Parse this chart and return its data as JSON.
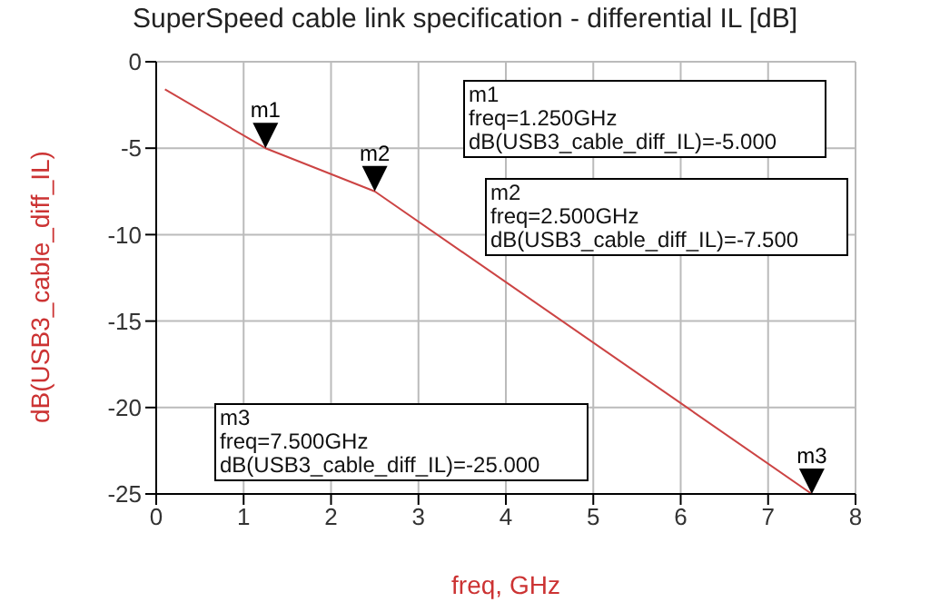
{
  "chart_data": {
    "type": "line",
    "title": "SuperSpeed cable link specification - differential IL [dB]",
    "xlabel": "freq, GHz",
    "ylabel": "dB(USB3_cable_diff_IL)",
    "series": [
      {
        "color": "#cc4444",
        "x": [
          0.1,
          1.25,
          2.5,
          7.5
        ],
        "values": [
          -1.6,
          -5,
          -7.5,
          -25
        ]
      }
    ],
    "xlim": [
      0,
      8
    ],
    "xticks": [
      0,
      1,
      2,
      3,
      4,
      5,
      6,
      7,
      8
    ],
    "ylim": [
      -25,
      0
    ],
    "yticks": [
      -25,
      -20,
      -15,
      -10,
      -5,
      0
    ],
    "grid": true,
    "marker": "none",
    "line_style": "solid",
    "annotations": [
      {
        "text": "m1",
        "x": 1.25,
        "y": -5
      },
      {
        "text": "m2",
        "x": 2.5,
        "y": -7.5
      },
      {
        "text": "m3",
        "x": 7.5,
        "y": -25
      },
      "m1\nfreq=1.250GHz\ndB(USB3_cable_diff_IL)=-5.000",
      "m2\nfreq=2.500GHz\ndB(USB3_cable_diff_IL)=-7.500",
      "m3\nfreq=7.500GHz\ndB(USB3_cable_diff_IL)=-25.000"
    ]
  }
}
